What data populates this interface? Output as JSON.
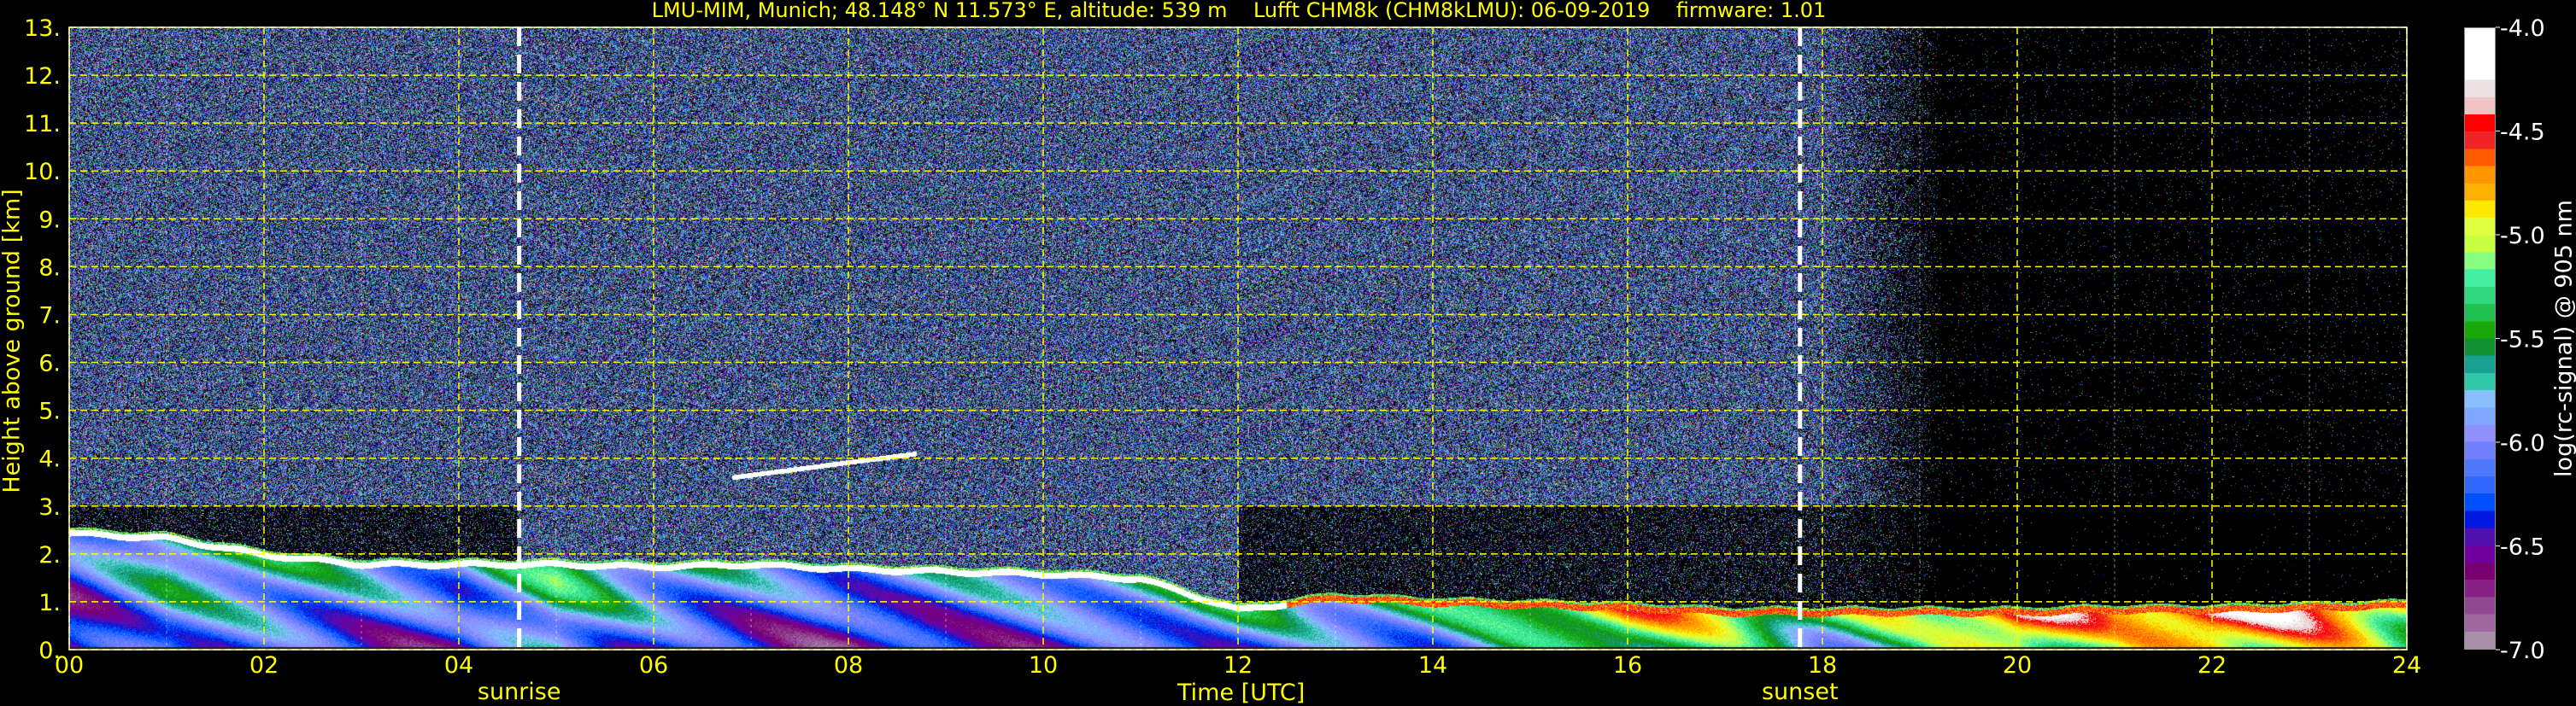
{
  "chart_data": {
    "type": "heatmap",
    "title": "LMU-MIM, Munich; 48.148° N 11.573° E, altitude: 539 m    Lufft CHM8k (CHM8kLMU): 06-09-2019    firmware: 1.01",
    "xlabel": "Time [UTC]",
    "ylabel": "Height above ground [km]",
    "colorbar_label": "log(rc-signal) @ 905 nm",
    "xlim": [
      0,
      24
    ],
    "ylim": [
      0,
      13
    ],
    "clim": [
      -7.0,
      -4.0
    ],
    "grid": true,
    "grid_color": "#ffff00",
    "x_ticks": [
      0,
      2,
      4,
      6,
      8,
      10,
      12,
      14,
      16,
      18,
      20,
      22,
      24
    ],
    "x_tick_labels": [
      "00",
      "02",
      "04",
      "06",
      "08",
      "10",
      "12",
      "14",
      "16",
      "18",
      "20",
      "22",
      "24"
    ],
    "y_ticks": [
      0,
      1,
      2,
      3,
      4,
      5,
      6,
      7,
      8,
      9,
      10,
      11,
      12,
      13
    ],
    "y_tick_labels": [
      "0.",
      "1.",
      "2.",
      "3.",
      "4.",
      "5.",
      "6.",
      "7.",
      "8.",
      "9.",
      "10.",
      "11.",
      "12.",
      "13."
    ],
    "colorbar_ticks": [
      -4.0,
      -4.5,
      -5.0,
      -5.5,
      -6.0,
      -6.5,
      -7.0
    ],
    "colorbar_tick_labels": [
      "-4.0",
      "-4.5",
      "-5.0",
      "-5.5",
      "-6.0",
      "-6.5",
      "-7.0"
    ],
    "colormap": [
      "#a890a8",
      "#a068a0",
      "#904890",
      "#882088",
      "#780070",
      "#7000a0",
      "#5010b0",
      "#0018e0",
      "#0050ff",
      "#3068ff",
      "#5078ff",
      "#7080ff",
      "#9090ff",
      "#80a8ff",
      "#88c0ff",
      "#30c8a8",
      "#18a090",
      "#109030",
      "#18a808",
      "#20c050",
      "#30d880",
      "#44f0a0",
      "#88ff80",
      "#c8ff40",
      "#e0ff40",
      "#ffe800",
      "#ffb000",
      "#ff9600",
      "#ff5a00",
      "#f02424",
      "#ff0000",
      "#f0c4c4",
      "#ece2e4",
      "#ffffff",
      "#ffffff",
      "#ffffff"
    ],
    "events": [
      {
        "label": "sunrise",
        "time": 4.62
      },
      {
        "label": "sunset",
        "time": 17.77
      }
    ],
    "aerosol_layer": {
      "hours": [
        0,
        1,
        2,
        3,
        4,
        5,
        6,
        7,
        8,
        9,
        10,
        11,
        12,
        13,
        14,
        15,
        16,
        17,
        18,
        19,
        20,
        21,
        22,
        23,
        24
      ],
      "top_km": [
        2.45,
        2.35,
        2.0,
        1.8,
        1.8,
        1.8,
        1.75,
        1.8,
        1.7,
        1.65,
        1.6,
        1.5,
        0.85,
        1.1,
        1.0,
        0.95,
        0.9,
        0.8,
        0.8,
        0.8,
        0.8,
        0.85,
        0.85,
        0.9,
        0.95
      ],
      "mean_log_signal": [
        -6.4,
        -5.8,
        -5.9,
        -6.1,
        -6.2,
        -5.6,
        -6.0,
        -6.2,
        -6.3,
        -6.2,
        -6.1,
        -6.0,
        -5.9,
        -5.9,
        -5.8,
        -5.4,
        -5.0,
        -5.2,
        -5.6,
        -5.3,
        -4.6,
        -5.0,
        -4.5,
        -4.7,
        -5.1
      ]
    },
    "elevated_layer": {
      "start": 6.8,
      "end": 8.7,
      "height_km": [
        3.6,
        4.1
      ]
    }
  }
}
